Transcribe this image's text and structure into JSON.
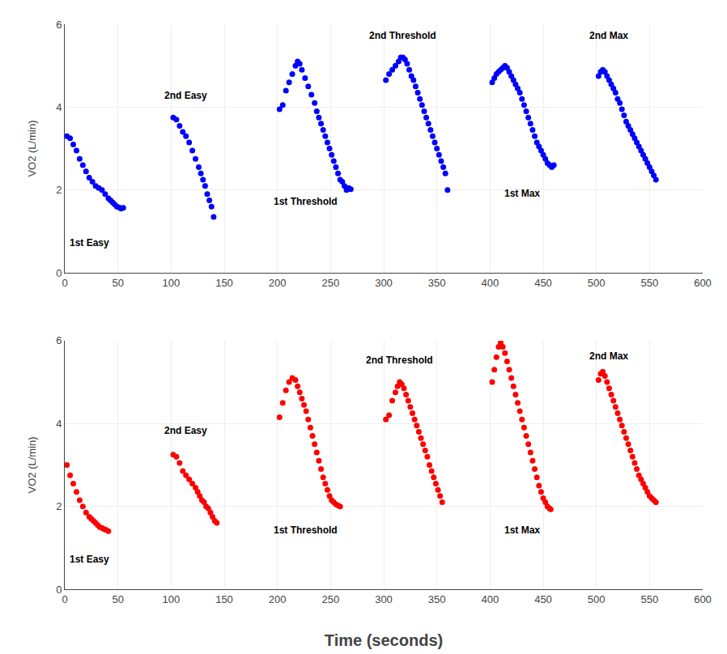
{
  "chart_data": [
    {
      "type": "scatter",
      "color": "blue",
      "ylabel": "VO2 (L/min)",
      "xlim": [
        0,
        600
      ],
      "ylim": [
        0,
        6
      ],
      "xticks": [
        0,
        50,
        100,
        150,
        200,
        250,
        300,
        350,
        400,
        450,
        500,
        550,
        600
      ],
      "yticks": [
        0,
        2,
        4,
        6
      ],
      "grid": true,
      "x": [
        2,
        5,
        8,
        11,
        14,
        17,
        20,
        23,
        26,
        29,
        32,
        35,
        38,
        41,
        43,
        45,
        47,
        49,
        51,
        53,
        55,
        102,
        105,
        108,
        111,
        114,
        117,
        120,
        123,
        126,
        128,
        130,
        132,
        134,
        136,
        138,
        140,
        202,
        205,
        208,
        211,
        214,
        217,
        219,
        221,
        223,
        226,
        229,
        232,
        235,
        237,
        239,
        241,
        243,
        245,
        247,
        249,
        251,
        253,
        255,
        257,
        259,
        261,
        263,
        265,
        267,
        269,
        302,
        305,
        308,
        311,
        314,
        316,
        318,
        320,
        322,
        324,
        326,
        328,
        330,
        332,
        334,
        336,
        338,
        340,
        342,
        344,
        346,
        348,
        350,
        352,
        354,
        356,
        358,
        360,
        402,
        404,
        406,
        408,
        410,
        412,
        414,
        416,
        418,
        420,
        422,
        424,
        426,
        428,
        430,
        432,
        434,
        436,
        438,
        440,
        442,
        444,
        446,
        448,
        450,
        452,
        454,
        456,
        458,
        460,
        502,
        504,
        506,
        508,
        510,
        512,
        514,
        516,
        518,
        520,
        522,
        524,
        526,
        528,
        530,
        532,
        534,
        536,
        538,
        540,
        542,
        544,
        546,
        548,
        550,
        552,
        554,
        556
      ],
      "values": [
        3.3,
        3.25,
        3.1,
        2.95,
        2.75,
        2.6,
        2.45,
        2.3,
        2.2,
        2.1,
        2.05,
        2.0,
        1.9,
        1.8,
        1.75,
        1.7,
        1.65,
        1.6,
        1.58,
        1.55,
        1.57,
        3.75,
        3.7,
        3.55,
        3.4,
        3.3,
        3.15,
        2.95,
        2.75,
        2.55,
        2.4,
        2.25,
        2.1,
        1.9,
        1.75,
        1.6,
        1.35,
        3.95,
        4.05,
        4.4,
        4.6,
        4.8,
        5.0,
        5.1,
        5.05,
        4.9,
        4.7,
        4.5,
        4.3,
        4.1,
        3.9,
        3.75,
        3.6,
        3.45,
        3.3,
        3.15,
        3.0,
        2.85,
        2.7,
        2.55,
        2.4,
        2.25,
        2.2,
        2.1,
        2.0,
        2.05,
        2.02,
        4.65,
        4.8,
        4.9,
        5.0,
        5.1,
        5.2,
        5.2,
        5.15,
        5.05,
        4.9,
        4.75,
        4.65,
        4.5,
        4.35,
        4.2,
        4.05,
        3.9,
        3.75,
        3.6,
        3.45,
        3.3,
        3.15,
        3.0,
        2.85,
        2.7,
        2.55,
        2.4,
        2.0,
        4.6,
        4.7,
        4.8,
        4.85,
        4.9,
        4.95,
        5.0,
        4.95,
        4.85,
        4.75,
        4.65,
        4.55,
        4.45,
        4.35,
        4.2,
        4.05,
        3.9,
        3.75,
        3.6,
        3.45,
        3.3,
        3.15,
        3.05,
        2.95,
        2.85,
        2.75,
        2.65,
        2.6,
        2.55,
        2.6,
        4.75,
        4.85,
        4.9,
        4.85,
        4.75,
        4.65,
        4.55,
        4.45,
        4.35,
        4.2,
        4.1,
        3.95,
        3.8,
        3.65,
        3.55,
        3.45,
        3.35,
        3.25,
        3.15,
        3.05,
        2.95,
        2.85,
        2.75,
        2.65,
        2.55,
        2.45,
        2.35,
        2.25
      ],
      "annotations": [
        {
          "text": "1st Easy",
          "x": 3,
          "y": 0.55
        },
        {
          "text": "2nd Easy",
          "x": 92,
          "y": 4.1
        },
        {
          "text": "1st Threshold",
          "x": 195,
          "y": 1.55
        },
        {
          "text": "2nd Threshold",
          "x": 285,
          "y": 5.55
        },
        {
          "text": "1st Max",
          "x": 412,
          "y": 1.75
        },
        {
          "text": "2nd Max",
          "x": 492,
          "y": 5.55
        }
      ]
    },
    {
      "type": "scatter",
      "color": "red",
      "ylabel": "VO2 (L/min)",
      "xlabel": "Time (seconds)",
      "xlim": [
        0,
        600
      ],
      "ylim": [
        0,
        6
      ],
      "xticks": [
        0,
        50,
        100,
        150,
        200,
        250,
        300,
        350,
        400,
        450,
        500,
        550,
        600
      ],
      "yticks": [
        0,
        2,
        4,
        6
      ],
      "grid": true,
      "x": [
        2,
        5,
        8,
        11,
        14,
        17,
        20,
        23,
        25,
        27,
        29,
        31,
        33,
        35,
        37,
        39,
        41,
        102,
        105,
        108,
        111,
        114,
        117,
        120,
        123,
        125,
        127,
        129,
        131,
        133,
        135,
        137,
        139,
        141,
        143,
        202,
        205,
        208,
        211,
        214,
        217,
        219,
        221,
        223,
        225,
        227,
        229,
        231,
        233,
        235,
        237,
        239,
        241,
        243,
        245,
        247,
        249,
        251,
        253,
        255,
        257,
        259,
        302,
        305,
        308,
        311,
        313,
        315,
        317,
        319,
        321,
        323,
        325,
        327,
        329,
        331,
        333,
        335,
        337,
        339,
        341,
        343,
        345,
        347,
        349,
        351,
        353,
        355,
        402,
        404,
        406,
        408,
        410,
        412,
        414,
        416,
        418,
        420,
        422,
        424,
        426,
        428,
        430,
        432,
        434,
        436,
        438,
        440,
        442,
        444,
        446,
        448,
        450,
        452,
        454,
        456,
        457,
        502,
        504,
        506,
        508,
        510,
        512,
        514,
        516,
        518,
        520,
        522,
        524,
        526,
        528,
        530,
        532,
        534,
        536,
        538,
        540,
        542,
        544,
        546,
        548,
        550,
        552,
        554,
        556
      ],
      "values": [
        3.0,
        2.75,
        2.55,
        2.35,
        2.15,
        2.0,
        1.85,
        1.75,
        1.7,
        1.65,
        1.6,
        1.55,
        1.5,
        1.48,
        1.45,
        1.43,
        1.4,
        3.25,
        3.2,
        3.05,
        2.85,
        2.75,
        2.65,
        2.55,
        2.45,
        2.35,
        2.25,
        2.15,
        2.1,
        2.0,
        1.95,
        1.85,
        1.75,
        1.65,
        1.6,
        4.15,
        4.5,
        4.8,
        5.0,
        5.1,
        5.05,
        4.9,
        4.75,
        4.6,
        4.45,
        4.3,
        4.1,
        3.9,
        3.7,
        3.5,
        3.3,
        3.1,
        2.9,
        2.7,
        2.55,
        2.4,
        2.25,
        2.15,
        2.1,
        2.05,
        2.02,
        2.0,
        4.1,
        4.2,
        4.55,
        4.75,
        4.9,
        5.0,
        4.95,
        4.85,
        4.7,
        4.55,
        4.4,
        4.25,
        4.1,
        3.95,
        3.8,
        3.65,
        3.5,
        3.35,
        3.2,
        3.0,
        2.85,
        2.7,
        2.55,
        2.4,
        2.25,
        2.1,
        5.0,
        5.3,
        5.6,
        5.85,
        5.95,
        5.85,
        5.7,
        5.5,
        5.3,
        5.1,
        4.9,
        4.7,
        4.5,
        4.3,
        4.1,
        3.9,
        3.7,
        3.5,
        3.3,
        3.1,
        2.9,
        2.7,
        2.5,
        2.35,
        2.2,
        2.1,
        2.0,
        1.95,
        1.93,
        5.05,
        5.2,
        5.25,
        5.15,
        5.0,
        4.85,
        4.7,
        4.55,
        4.4,
        4.25,
        4.1,
        3.95,
        3.8,
        3.65,
        3.5,
        3.35,
        3.2,
        3.05,
        2.9,
        2.75,
        2.65,
        2.55,
        2.45,
        2.35,
        2.25,
        2.2,
        2.15,
        2.1
      ],
      "annotations": [
        {
          "text": "1st Easy",
          "x": 3,
          "y": 0.55
        },
        {
          "text": "2nd Easy",
          "x": 92,
          "y": 3.65
        },
        {
          "text": "1st Threshold",
          "x": 195,
          "y": 1.25
        },
        {
          "text": "2nd Threshold",
          "x": 282,
          "y": 5.35
        },
        {
          "text": "1st Max",
          "x": 412,
          "y": 1.25
        },
        {
          "text": "2nd Max",
          "x": 492,
          "y": 5.45
        }
      ]
    }
  ]
}
